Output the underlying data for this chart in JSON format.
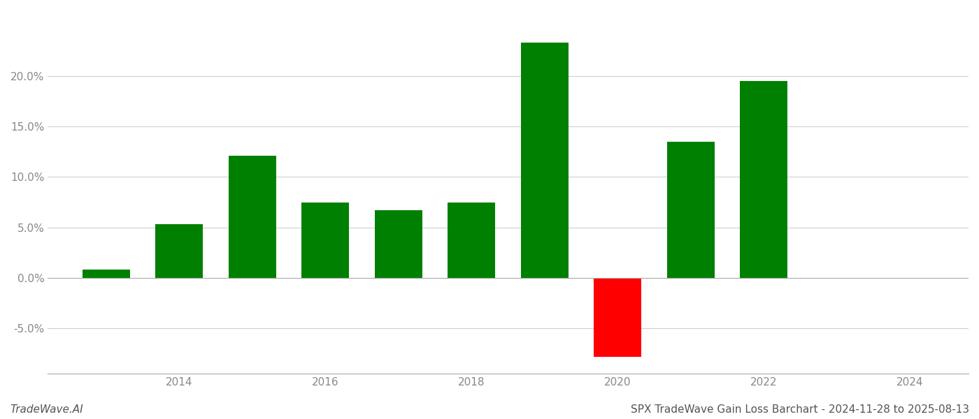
{
  "years": [
    2013,
    2014,
    2015,
    2016,
    2017,
    2018,
    2019,
    2020,
    2021,
    2022,
    2023
  ],
  "values": [
    0.008,
    0.053,
    0.121,
    0.075,
    0.067,
    0.075,
    0.233,
    -0.078,
    0.135,
    0.195,
    0.0
  ],
  "bar_colors_positive": "#008000",
  "bar_colors_negative": "#ff0000",
  "footer_left": "TradeWave.AI",
  "footer_right": "SPX TradeWave Gain Loss Barchart - 2024-11-28 to 2025-08-13",
  "background_color": "#ffffff",
  "ylim_min": -0.095,
  "ylim_max": 0.265,
  "bar_width": 0.65,
  "grid_color": "#d0d0d0",
  "tick_label_color": "#888888",
  "footer_font_size": 11,
  "axis_font_size": 11,
  "xticks": [
    2014,
    2016,
    2018,
    2020,
    2022,
    2024
  ],
  "xlim_min": 2012.2,
  "xlim_max": 2024.8,
  "yticks": [
    -0.05,
    0.0,
    0.05,
    0.1,
    0.15,
    0.2
  ]
}
